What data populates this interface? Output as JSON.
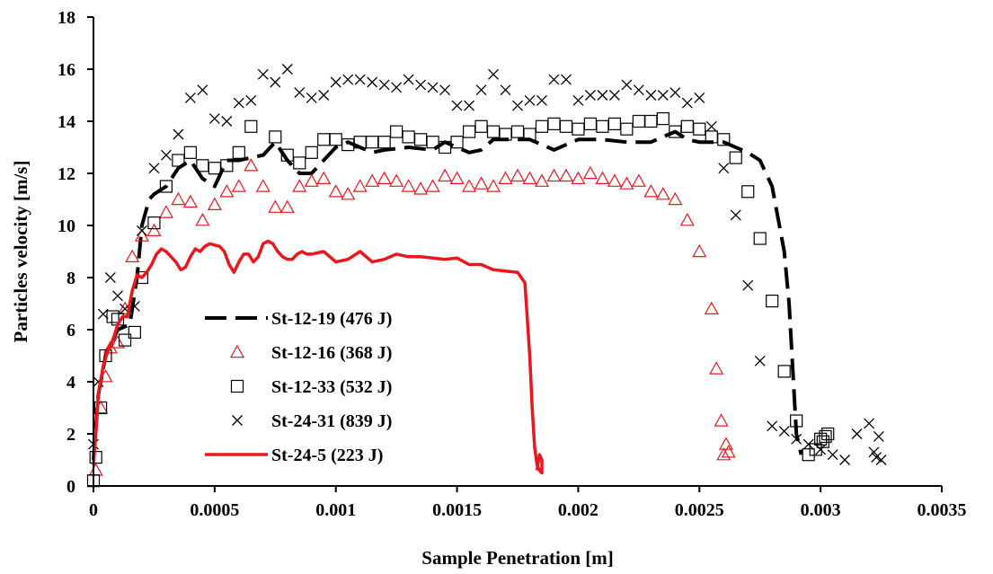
{
  "chart_data": {
    "type": "scatter",
    "xlabel": "Sample Penetration [m]",
    "ylabel": "Particles velocity [m/s]",
    "xlim": [
      0,
      0.0035
    ],
    "ylim": [
      0,
      18
    ],
    "x_ticks": [
      "0",
      "0.0005",
      "0.001",
      "0.0015",
      "0.002",
      "0.0025",
      "0.003",
      "0.0035"
    ],
    "y_ticks": [
      "0",
      "2",
      "4",
      "6",
      "8",
      "10",
      "12",
      "14",
      "16",
      "18"
    ],
    "grid": false,
    "legend_position": "left",
    "series": [
      {
        "name": "St-12-19 (476 J)",
        "style": "dashed-line",
        "color": "#000000",
        "x": [
          0,
          2e-05,
          5e-05,
          0.0001,
          0.00015,
          0.00018,
          0.0002,
          0.00023,
          0.00025,
          0.0003,
          0.00035,
          0.0004,
          0.00045,
          0.0005,
          0.00055,
          0.0006,
          0.00065,
          0.0007,
          0.00075,
          0.0008,
          0.00085,
          0.0009,
          0.00095,
          0.001,
          0.00105,
          0.0011,
          0.00115,
          0.0012,
          0.0013,
          0.0014,
          0.00145,
          0.0015,
          0.00155,
          0.0016,
          0.00165,
          0.0017,
          0.0018,
          0.0019,
          0.002,
          0.0021,
          0.0022,
          0.0023,
          0.0024,
          0.00245,
          0.0025,
          0.0026,
          0.0027,
          0.00275,
          0.0028,
          0.00285,
          0.00287,
          0.0029,
          0.00292
        ],
        "y": [
          1.0,
          3.5,
          5.0,
          6.0,
          6.2,
          8.0,
          10.0,
          11.0,
          11.2,
          11.5,
          12.2,
          12.5,
          11.8,
          11.5,
          12.5,
          12.5,
          12.6,
          12.7,
          13.2,
          12.5,
          12.0,
          12.0,
          12.5,
          13.0,
          13.2,
          13.0,
          12.8,
          12.9,
          13.0,
          12.9,
          13.2,
          13.0,
          12.8,
          12.9,
          13.3,
          13.3,
          13.3,
          12.9,
          13.3,
          13.3,
          13.2,
          13.2,
          13.6,
          13.3,
          13.2,
          13.2,
          12.8,
          12.5,
          11.5,
          9.0,
          7.0,
          2.0,
          1.2
        ]
      },
      {
        "name": "St-12-16 (368 J)",
        "style": "triangle",
        "color": "#e8181d",
        "x": [
          1e-05,
          3e-05,
          5e-05,
          7e-05,
          0.0001,
          0.00013,
          0.00016,
          0.0002,
          0.00025,
          0.0003,
          0.00035,
          0.0004,
          0.00045,
          0.0005,
          0.00055,
          0.0006,
          0.00065,
          0.0007,
          0.00075,
          0.0008,
          0.00085,
          0.0009,
          0.00095,
          0.001,
          0.00105,
          0.0011,
          0.00115,
          0.0012,
          0.00125,
          0.0013,
          0.00135,
          0.0014,
          0.00145,
          0.0015,
          0.00155,
          0.0016,
          0.00165,
          0.0017,
          0.00175,
          0.0018,
          0.00185,
          0.0019,
          0.00195,
          0.002,
          0.00205,
          0.0021,
          0.00215,
          0.0022,
          0.00225,
          0.0023,
          0.00235,
          0.0024,
          0.00245,
          0.0025,
          0.00255,
          0.00257,
          0.00259,
          0.0026,
          0.00261,
          0.00262
        ],
        "y": [
          0.6,
          3.0,
          4.2,
          5.3,
          5.5,
          6.8,
          8.8,
          9.6,
          9.8,
          10.5,
          11.0,
          10.9,
          10.2,
          10.8,
          11.3,
          11.5,
          12.3,
          11.5,
          10.7,
          10.7,
          11.5,
          11.7,
          11.8,
          11.3,
          11.2,
          11.5,
          11.7,
          11.8,
          11.7,
          11.5,
          11.4,
          11.5,
          11.9,
          11.8,
          11.5,
          11.6,
          11.5,
          11.8,
          11.9,
          11.8,
          11.7,
          11.9,
          11.9,
          11.8,
          12.0,
          11.8,
          11.7,
          11.6,
          11.7,
          11.3,
          11.2,
          11.0,
          10.2,
          9.0,
          6.8,
          4.5,
          2.5,
          1.2,
          1.6,
          1.3
        ]
      },
      {
        "name": "St-12-33 (532 J)",
        "style": "square",
        "color": "#000000",
        "x": [
          0,
          1e-05,
          3e-05,
          5e-05,
          8e-05,
          0.0001,
          0.00013,
          0.00017,
          0.0002,
          0.00025,
          0.0003,
          0.00035,
          0.0004,
          0.00045,
          0.0005,
          0.00055,
          0.0006,
          0.00065,
          0.00075,
          0.0008,
          0.00085,
          0.0009,
          0.00095,
          0.001,
          0.00105,
          0.0011,
          0.00115,
          0.0012,
          0.00125,
          0.0013,
          0.00135,
          0.0014,
          0.00145,
          0.0015,
          0.00155,
          0.0016,
          0.00165,
          0.0017,
          0.00175,
          0.0018,
          0.00185,
          0.0019,
          0.00195,
          0.002,
          0.00205,
          0.0021,
          0.00215,
          0.0022,
          0.00225,
          0.0023,
          0.00235,
          0.0024,
          0.00245,
          0.0025,
          0.00255,
          0.0026,
          0.00265,
          0.0027,
          0.00275,
          0.0028,
          0.00285,
          0.0029,
          0.00295,
          0.00298,
          0.003,
          0.00301,
          0.00302,
          0.00303
        ],
        "y": [
          0.2,
          1.1,
          3.0,
          5.0,
          6.5,
          6.4,
          5.6,
          5.9,
          8.0,
          10.1,
          11.5,
          12.5,
          12.8,
          12.3,
          12.2,
          12.3,
          12.8,
          13.8,
          13.4,
          12.7,
          12.4,
          12.8,
          13.3,
          13.3,
          13.1,
          13.2,
          13.2,
          13.2,
          13.6,
          13.4,
          13.3,
          13.2,
          13.0,
          13.2,
          13.6,
          13.8,
          13.6,
          13.5,
          13.6,
          13.5,
          13.8,
          13.9,
          13.8,
          13.7,
          13.9,
          13.8,
          13.9,
          13.7,
          14.0,
          14.0,
          14.1,
          13.6,
          13.8,
          13.7,
          13.4,
          13.3,
          12.6,
          11.3,
          9.5,
          7.1,
          4.4,
          2.5,
          1.2,
          1.4,
          1.8,
          1.7,
          1.9,
          2.0
        ]
      },
      {
        "name": "St-24-31 (839 J)",
        "style": "cross",
        "color": "#000000",
        "x": [
          0,
          2e-05,
          4e-05,
          7e-05,
          0.0001,
          0.00013,
          0.00017,
          0.0002,
          0.00025,
          0.0003,
          0.00035,
          0.0004,
          0.00045,
          0.0005,
          0.00055,
          0.0006,
          0.00065,
          0.0007,
          0.00075,
          0.0008,
          0.00085,
          0.0009,
          0.00095,
          0.001,
          0.00105,
          0.0011,
          0.00115,
          0.0012,
          0.00125,
          0.0013,
          0.00135,
          0.0014,
          0.00145,
          0.0015,
          0.00155,
          0.0016,
          0.00165,
          0.0017,
          0.00175,
          0.0018,
          0.00185,
          0.0019,
          0.00195,
          0.002,
          0.00205,
          0.0021,
          0.00215,
          0.0022,
          0.00225,
          0.0023,
          0.00235,
          0.0024,
          0.00245,
          0.0025,
          0.00255,
          0.0026,
          0.00265,
          0.0027,
          0.00275,
          0.0028,
          0.00285,
          0.0029,
          0.00295,
          0.003,
          0.00305,
          0.0031,
          0.00315,
          0.0032,
          0.00322,
          0.00323,
          0.00324,
          0.00325
        ],
        "y": [
          1.6,
          4.0,
          6.6,
          8.0,
          7.3,
          6.8,
          6.9,
          9.8,
          12.2,
          12.7,
          13.5,
          14.9,
          15.2,
          14.1,
          14.0,
          14.7,
          14.8,
          15.8,
          15.5,
          16.0,
          15.1,
          14.9,
          15.0,
          15.5,
          15.6,
          15.6,
          15.5,
          15.4,
          15.3,
          15.6,
          15.4,
          15.3,
          15.2,
          14.6,
          14.6,
          15.2,
          15.8,
          15.2,
          14.6,
          14.8,
          14.8,
          15.6,
          15.6,
          14.8,
          15.0,
          15.0,
          15.0,
          15.4,
          15.2,
          15.0,
          15.0,
          15.1,
          14.7,
          14.9,
          13.8,
          12.2,
          10.4,
          7.7,
          4.8,
          2.3,
          2.1,
          1.8,
          1.6,
          1.4,
          1.2,
          1.0,
          2.0,
          2.4,
          1.3,
          1.1,
          1.9,
          1.0
        ]
      },
      {
        "name": "St-24-5 (223 J)",
        "style": "solid-line",
        "color": "#e8181d",
        "x": [
          0,
          1e-05,
          2e-05,
          4e-05,
          6e-05,
          8e-05,
          0.0001,
          0.00012,
          0.00014,
          0.00016,
          0.00018,
          0.0002,
          0.00022,
          0.00024,
          0.00026,
          0.00028,
          0.0003,
          0.00032,
          0.00034,
          0.00036,
          0.00038,
          0.0004,
          0.00042,
          0.00044,
          0.00046,
          0.00048,
          0.0005,
          0.00052,
          0.00054,
          0.00056,
          0.00058,
          0.0006,
          0.00062,
          0.00064,
          0.00066,
          0.00068,
          0.0007,
          0.00072,
          0.00074,
          0.00076,
          0.00078,
          0.0008,
          0.00082,
          0.00084,
          0.00086,
          0.00088,
          0.0009,
          0.00095,
          0.001,
          0.00105,
          0.0011,
          0.00115,
          0.0012,
          0.00125,
          0.0013,
          0.00135,
          0.0014,
          0.00145,
          0.0015,
          0.00155,
          0.0016,
          0.00165,
          0.0017,
          0.00175,
          0.00178,
          0.0018,
          0.00181,
          0.00182,
          0.00183,
          0.00184,
          0.00185,
          0.00185,
          0.00184,
          0.00183
        ],
        "y": [
          0.8,
          2.0,
          3.5,
          4.6,
          5.2,
          5.6,
          6.2,
          6.5,
          6.5,
          7.5,
          8.1,
          8.0,
          8.2,
          8.5,
          8.9,
          9.1,
          9.0,
          8.8,
          8.6,
          8.3,
          8.4,
          8.8,
          9.1,
          9.0,
          9.2,
          9.3,
          9.25,
          9.2,
          9.0,
          8.5,
          8.2,
          8.6,
          8.9,
          8.9,
          8.6,
          8.8,
          9.3,
          9.4,
          9.3,
          9.0,
          8.8,
          8.7,
          8.7,
          8.9,
          9.0,
          8.9,
          8.9,
          9.0,
          8.6,
          8.7,
          9.0,
          8.6,
          8.7,
          8.9,
          8.8,
          8.8,
          8.75,
          8.7,
          8.75,
          8.5,
          8.5,
          8.3,
          8.25,
          8.2,
          7.8,
          5.0,
          3.0,
          1.5,
          0.8,
          0.6,
          0.5,
          1.0,
          1.2,
          0.6
        ]
      }
    ]
  }
}
